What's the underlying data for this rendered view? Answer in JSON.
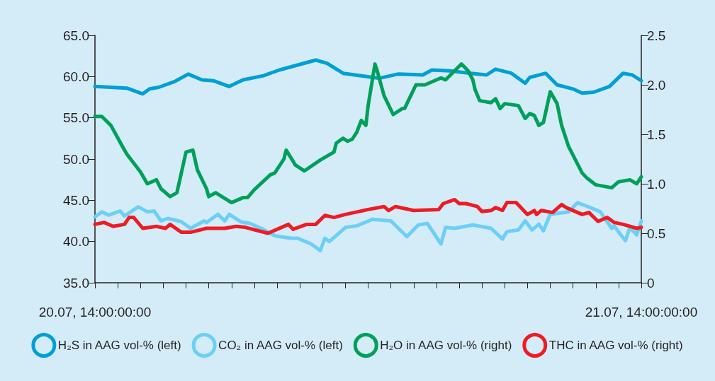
{
  "chart_data": {
    "type": "line",
    "xlim": [
      "--07-20T14:00",
      "--07-21T14:00"
    ],
    "xticks": [
      {
        "value": "--07-20T14:00",
        "label": "20.07, 14:00:00:00"
      },
      {
        "value": "--07-20T15:00",
        "label": null
      },
      {
        "value": "--07-20T16:00",
        "label": null
      },
      {
        "value": "--07-20T17:00",
        "label": null
      },
      {
        "value": "--07-20T18:00",
        "label": null
      },
      {
        "value": "--07-20T19:00",
        "label": null
      },
      {
        "value": "--07-20T20:00",
        "label": null
      },
      {
        "value": "--07-20T21:00",
        "label": null
      },
      {
        "value": "--07-20T22:00",
        "label": null
      },
      {
        "value": "--07-20T23:00",
        "label": null
      },
      {
        "value": "--07-21T00:00",
        "label": null
      },
      {
        "value": "--07-21T01:00",
        "label": null
      },
      {
        "value": "--07-21T02:00",
        "label": null
      },
      {
        "value": "--07-21T03:00",
        "label": null
      },
      {
        "value": "--07-21T04:00",
        "label": null
      },
      {
        "value": "--07-21T05:00",
        "label": null
      },
      {
        "value": "--07-21T06:00",
        "label": null
      },
      {
        "value": "--07-21T07:00",
        "label": null
      },
      {
        "value": "--07-21T08:00",
        "label": null
      },
      {
        "value": "--07-21T09:00",
        "label": null
      },
      {
        "value": "--07-21T10:00",
        "label": null
      },
      {
        "value": "--07-21T11:00",
        "label": null
      },
      {
        "value": "--07-21T12:00",
        "label": null
      },
      {
        "value": "--07-21T13:00",
        "label": null
      },
      {
        "value": "--07-21T14:00",
        "label": "21.07, 14:00:00:00"
      }
    ],
    "ylim": [
      35,
      65
    ],
    "yticks": [
      {
        "value": 35,
        "label": "35.0"
      },
      {
        "value": 40,
        "label": "40.0"
      },
      {
        "value": 45,
        "label": "45.0"
      },
      {
        "value": 50,
        "label": "50.0"
      },
      {
        "value": 55,
        "label": "55.0"
      },
      {
        "value": 60,
        "label": "60.0"
      },
      {
        "value": 65,
        "label": "65.0"
      }
    ],
    "y2lim": [
      0,
      2.5
    ],
    "y2ticks": [
      0,
      0.5,
      {
        "value": 1,
        "label": "1.0"
      },
      1.5,
      {
        "value": 2,
        "label": "2.0"
      },
      2.5
    ],
    "grid": false,
    "legend": "bottom",
    "marker": "none",
    "line_style": "solid",
    "series": [
      {
        "name": "H₂S in AAG vol-% (left)",
        "color": "#009fd6",
        "x": [
          "--07-20T14:00",
          "--07-20T15:24",
          "--07-20T16:06",
          "--07-20T16:24",
          "--07-20T16:48",
          "--07-20T17:30",
          "--07-20T18:06",
          "--07-20T18:42",
          "--07-20T19:12",
          "--07-20T19:54",
          "--07-20T20:30",
          "--07-20T21:24",
          "--07-20T22:06",
          "--07-20T22:54",
          "--07-20T23:42",
          "--07-21T00:12",
          "--07-21T00:54",
          "--07-21T01:42",
          "--07-21T02:30",
          "--07-21T03:18",
          "--07-21T04:24",
          "--07-21T04:48",
          "--07-21T05:36",
          "--07-21T06:30",
          "--07-21T07:12",
          "--07-21T07:36",
          "--07-21T08:18",
          "--07-21T08:54",
          "--07-21T09:06",
          "--07-21T09:48",
          "--07-21T10:18",
          "--07-21T11:00",
          "--07-21T11:24",
          "--07-21T11:54",
          "--07-21T12:36",
          "--07-21T13:12",
          "--07-21T13:36",
          "--07-21T14:00"
        ],
        "values": [
          58.8,
          58.6,
          57.9,
          58.5,
          58.7,
          59.4,
          60.3,
          59.6,
          59.5,
          58.8,
          59.6,
          60.1,
          60.8,
          61.4,
          62.0,
          61.6,
          60.4,
          60.1,
          59.8,
          60.3,
          60.2,
          60.8,
          60.7,
          60.4,
          60.2,
          60.9,
          60.4,
          59.2,
          59.9,
          60.4,
          59.0,
          58.5,
          58.0,
          58.1,
          58.8,
          60.4,
          60.2,
          59.5
        ]
      },
      {
        "name": "CO₂ in AAG vol-% (left)",
        "color": "#6dcff6",
        "x": [
          "--07-20T14:00",
          "--07-20T14:18",
          "--07-20T14:36",
          "--07-20T15:06",
          "--07-20T15:18",
          "--07-20T15:54",
          "--07-20T16:18",
          "--07-20T16:36",
          "--07-20T16:54",
          "--07-20T17:12",
          "--07-20T17:48",
          "--07-20T18:12",
          "--07-20T18:48",
          "--07-20T18:54",
          "--07-20T19:24",
          "--07-20T19:42",
          "--07-20T19:54",
          "--07-20T20:24",
          "--07-20T20:48",
          "--07-20T21:18",
          "--07-20T21:54",
          "--07-20T22:36",
          "--07-20T22:54",
          "--07-20T23:30",
          "--07-20T23:54",
          "--07-21T00:06",
          "--07-21T00:18",
          "--07-21T01:00",
          "--07-21T01:30",
          "--07-21T02:12",
          "--07-21T03:00",
          "--07-21T03:42",
          "--07-21T04:12",
          "--07-21T04:36",
          "--07-21T05:12",
          "--07-21T05:24",
          "--07-21T05:48",
          "--07-21T06:36",
          "--07-21T07:24",
          "--07-21T07:54",
          "--07-21T08:06",
          "--07-21T08:36",
          "--07-21T08:54",
          "--07-21T09:12",
          "--07-21T09:30",
          "--07-21T09:42",
          "--07-21T10:00",
          "--07-21T10:48",
          "--07-21T11:12",
          "--07-21T11:36",
          "--07-21T12:12",
          "--07-21T12:42",
          "--07-21T12:48",
          "--07-21T13:18",
          "--07-21T13:30",
          "--07-21T13:48",
          "--07-21T14:00"
        ],
        "values": [
          43.0,
          43.6,
          43.2,
          43.7,
          43.1,
          44.2,
          43.6,
          43.7,
          42.5,
          42.8,
          42.4,
          41.6,
          42.5,
          42.3,
          43.3,
          42.5,
          43.3,
          42.4,
          42.2,
          41.6,
          40.7,
          40.4,
          40.4,
          39.7,
          38.9,
          40.4,
          40.0,
          41.7,
          41.9,
          42.7,
          42.5,
          40.6,
          42.0,
          42.2,
          39.7,
          41.7,
          41.6,
          42.0,
          41.6,
          40.3,
          41.2,
          41.4,
          42.5,
          41.4,
          42.1,
          41.3,
          43.3,
          43.6,
          44.7,
          44.3,
          43.6,
          41.6,
          41.9,
          40.1,
          41.7,
          40.8,
          42.5
        ]
      },
      {
        "name": "H₂O in AAG vol-% (right)",
        "color": "#00a05a",
        "axis": "y2",
        "x": [
          "--07-20T14:00",
          "--07-20T14:18",
          "--07-20T14:42",
          "--07-20T15:12",
          "--07-20T15:24",
          "--07-20T16:00",
          "--07-20T16:18",
          "--07-20T16:42",
          "--07-20T16:54",
          "--07-20T17:18",
          "--07-20T17:36",
          "--07-20T18:00",
          "--07-20T18:18",
          "--07-20T18:30",
          "--07-20T18:54",
          "--07-20T19:00",
          "--07-20T19:18",
          "--07-20T20:00",
          "--07-20T20:30",
          "--07-20T20:42",
          "--07-20T21:00",
          "--07-20T21:42",
          "--07-20T21:54",
          "--07-20T22:18",
          "--07-20T22:24",
          "--07-20T22:42",
          "--07-20T22:48",
          "--07-20T23:12",
          "--07-20T23:54",
          "--07-21T00:30",
          "--07-21T00:36",
          "--07-21T00:54",
          "--07-21T01:06",
          "--07-21T01:18",
          "--07-21T01:30",
          "--07-21T01:42",
          "--07-21T01:54",
          "--07-21T02:00",
          "--07-21T02:18",
          "--07-21T02:24",
          "--07-21T02:42",
          "--07-21T03:06",
          "--07-21T03:30",
          "--07-21T03:36",
          "--07-21T04:06",
          "--07-21T04:30",
          "--07-21T05:12",
          "--07-21T05:24",
          "--07-21T06:06",
          "--07-21T06:24",
          "--07-21T06:36",
          "--07-21T06:42",
          "--07-21T06:54",
          "--07-21T07:24",
          "--07-21T07:36",
          "--07-21T07:48",
          "--07-21T08:00",
          "--07-21T08:36",
          "--07-21T08:54",
          "--07-21T09:06",
          "--07-21T09:18",
          "--07-21T09:30",
          "--07-21T09:42",
          "--07-21T10:00",
          "--07-21T10:18",
          "--07-21T10:30",
          "--07-21T10:48",
          "--07-21T11:24",
          "--07-21T11:36",
          "--07-21T12:00",
          "--07-21T12:42",
          "--07-21T13:00",
          "--07-21T13:30",
          "--07-21T13:48",
          "--07-21T14:00"
        ],
        "values": [
          1.68,
          1.68,
          1.59,
          1.38,
          1.3,
          1.12,
          1.0,
          1.04,
          0.95,
          0.87,
          0.91,
          1.32,
          1.34,
          1.14,
          0.95,
          0.87,
          0.91,
          0.81,
          0.86,
          0.86,
          0.94,
          1.09,
          1.11,
          1.25,
          1.34,
          1.23,
          1.19,
          1.13,
          1.24,
          1.32,
          1.41,
          1.46,
          1.43,
          1.45,
          1.52,
          1.64,
          1.59,
          1.79,
          2.21,
          2.14,
          1.89,
          1.7,
          1.76,
          1.76,
          2.0,
          2.0,
          2.07,
          2.05,
          2.21,
          2.14,
          2.05,
          1.95,
          1.84,
          1.82,
          1.86,
          1.76,
          1.81,
          1.79,
          1.66,
          1.71,
          1.69,
          1.59,
          1.62,
          1.93,
          1.81,
          1.59,
          1.38,
          1.11,
          1.06,
          0.99,
          0.96,
          1.02,
          1.04,
          1.0,
          1.07
        ]
      },
      {
        "name": "THC in AAG vol-% (right)",
        "color": "#ed1c24",
        "axis": "y2",
        "x": [
          "--07-20T14:00",
          "--07-20T14:24",
          "--07-20T14:48",
          "--07-20T15:18",
          "--07-20T15:30",
          "--07-20T15:42",
          "--07-20T16:06",
          "--07-20T16:42",
          "--07-20T17:06",
          "--07-20T17:18",
          "--07-20T17:48",
          "--07-20T18:12",
          "--07-20T18:54",
          "--07-20T19:42",
          "--07-20T20:12",
          "--07-20T20:36",
          "--07-20T21:36",
          "--07-20T22:12",
          "--07-20T22:30",
          "--07-20T22:42",
          "--07-20T23:18",
          "--07-20T23:42",
          "--07-21T00:06",
          "--07-21T00:30",
          "--07-21T01:00",
          "--07-21T02:00",
          "--07-21T02:42",
          "--07-21T02:54",
          "--07-21T03:12",
          "--07-21T04:00",
          "--07-21T05:06",
          "--07-21T05:18",
          "--07-21T05:48",
          "--07-21T06:00",
          "--07-21T06:18",
          "--07-21T06:48",
          "--07-21T07:00",
          "--07-21T07:24",
          "--07-21T07:36",
          "--07-21T07:54",
          "--07-21T08:06",
          "--07-21T08:30",
          "--07-21T09:00",
          "--07-21T09:18",
          "--07-21T09:24",
          "--07-21T09:36",
          "--07-21T10:06",
          "--07-21T10:30",
          "--07-21T10:42",
          "--07-21T11:24",
          "--07-21T11:42",
          "--07-21T12:06",
          "--07-21T12:30",
          "--07-21T12:48",
          "--07-21T13:12",
          "--07-21T13:48",
          "--07-21T14:00"
        ],
        "values": [
          0.59,
          0.61,
          0.57,
          0.59,
          0.66,
          0.66,
          0.55,
          0.57,
          0.55,
          0.59,
          0.51,
          0.51,
          0.55,
          0.55,
          0.57,
          0.56,
          0.5,
          0.56,
          0.59,
          0.54,
          0.59,
          0.59,
          0.68,
          0.66,
          0.69,
          0.74,
          0.77,
          0.73,
          0.77,
          0.73,
          0.74,
          0.8,
          0.84,
          0.8,
          0.8,
          0.77,
          0.72,
          0.73,
          0.76,
          0.73,
          0.81,
          0.81,
          0.69,
          0.73,
          0.69,
          0.73,
          0.71,
          0.79,
          0.76,
          0.69,
          0.71,
          0.62,
          0.66,
          0.61,
          0.59,
          0.55,
          0.56
        ]
      }
    ]
  }
}
